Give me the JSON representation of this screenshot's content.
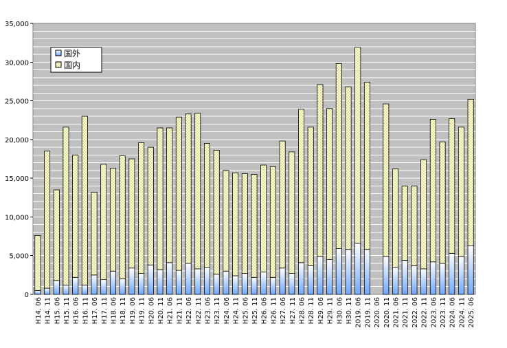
{
  "chart_data": {
    "type": "bar",
    "stacked": true,
    "title": "",
    "xlabel": "",
    "ylabel": "",
    "ylim": [
      0,
      35000
    ],
    "yticks": [
      0,
      5000,
      10000,
      15000,
      20000,
      25000,
      30000,
      35000
    ],
    "ytick_labels": [
      "0",
      "5,000",
      "10,000",
      "15,000",
      "20,000",
      "25,000",
      "30,000",
      "35,000"
    ],
    "grid": true,
    "legend_position": "top-left",
    "categories": [
      "H14. 06",
      "H14. 11",
      "H15. 06",
      "H15. 11",
      "H16. 06",
      "H16. 11",
      "H17. 06",
      "H17. 11",
      "H18. 06",
      "H18. 11",
      "H19. 06",
      "H19. 11",
      "H20. 06",
      "H20. 11",
      "H21. 06",
      "H21. 11",
      "H22. 06",
      "H22. 11",
      "H23. 06",
      "H23. 11",
      "H24. 06",
      "H24. 11",
      "H25. 06",
      "H25. 11",
      "H26. 06",
      "H26. 11",
      "H27. 06",
      "H27. 11",
      "H28. 06",
      "H28. 11",
      "H29. 06",
      "H29. 11",
      "H30. 06",
      "H30. 11",
      "2019. 06",
      "2019. 11",
      "2020. 06",
      "2020. 11",
      "2021. 06",
      "2021. 11",
      "2022. 06",
      "2022. 11",
      "2023. 06",
      "2023. 11",
      "2024. 06",
      "2024. 11",
      "2025. 06"
    ],
    "series": [
      {
        "name": "国外",
        "color": "#99ccff",
        "values": [
          500,
          800,
          1800,
          1200,
          2200,
          1200,
          2500,
          1900,
          3000,
          2000,
          3400,
          2700,
          3800,
          3200,
          4100,
          3100,
          4000,
          3300,
          3500,
          2600,
          3000,
          2400,
          2700,
          2200,
          2900,
          2200,
          3400,
          2700,
          4100,
          3700,
          4900,
          4500,
          5900,
          5800,
          6600,
          5800,
          0,
          4900,
          3500,
          4400,
          3700,
          3300,
          4200,
          4000,
          5300,
          4900,
          6300
        ]
      },
      {
        "name": "国内",
        "color": "#ffffcc",
        "values": [
          7100,
          17700,
          11700,
          20400,
          15800,
          21800,
          10700,
          14900,
          13300,
          15900,
          14100,
          16900,
          15200,
          18300,
          17400,
          19800,
          19300,
          20100,
          16000,
          16000,
          13000,
          13300,
          12900,
          13300,
          13800,
          14300,
          16400,
          15700,
          19800,
          17900,
          22200,
          19500,
          23900,
          21000,
          25300,
          21600,
          0,
          19700,
          12700,
          9600,
          10300,
          14100,
          18400,
          15700,
          17400,
          16700,
          18900
        ]
      }
    ]
  }
}
